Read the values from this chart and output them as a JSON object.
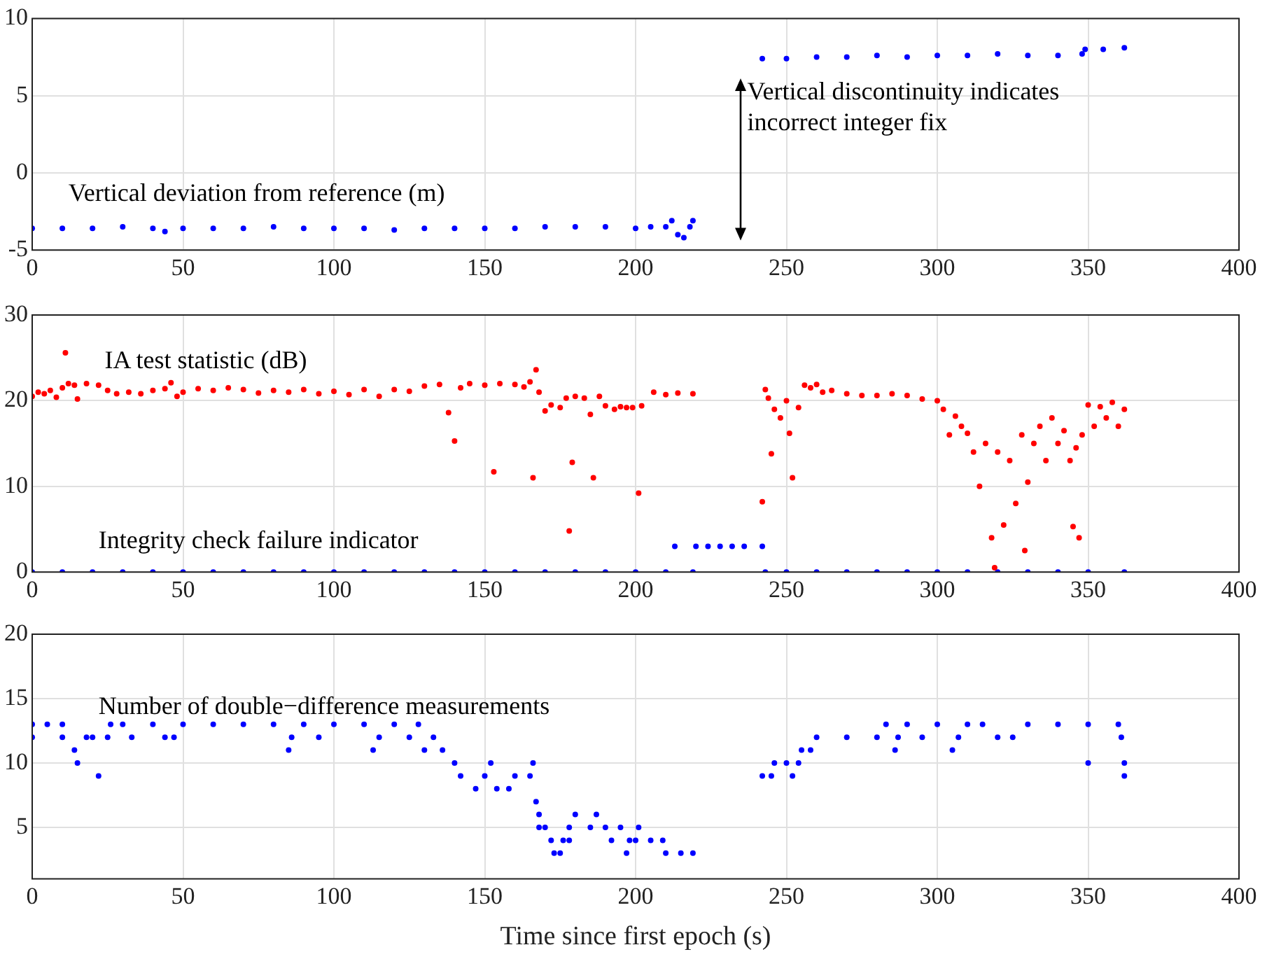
{
  "chart_data": [
    {
      "type": "scatter",
      "xlim": [
        0,
        400
      ],
      "xticks": [
        0,
        50,
        100,
        150,
        200,
        250,
        300,
        350,
        400
      ],
      "ylim": [
        -5,
        10
      ],
      "yticks": [
        -5,
        0,
        5,
        10
      ],
      "grid": true,
      "marker": "circle",
      "annotations": [
        "Vertical discontinuity indicates incorrect integer fix"
      ],
      "series": [
        {
          "name": "Vertical deviation from reference (m)",
          "color": "#0000ff",
          "x": [
            0,
            10,
            20,
            30,
            40,
            44,
            50,
            60,
            70,
            80,
            90,
            100,
            110,
            120,
            130,
            140,
            150,
            160,
            170,
            180,
            190,
            200,
            205,
            210,
            212,
            214,
            216,
            218,
            219,
            242,
            250,
            260,
            270,
            280,
            290,
            300,
            310,
            320,
            330,
            340,
            348,
            349,
            355,
            362
          ],
          "values": [
            -3.6,
            -3.6,
            -3.6,
            -3.5,
            -3.6,
            -3.8,
            -3.6,
            -3.6,
            -3.6,
            -3.5,
            -3.6,
            -3.6,
            -3.6,
            -3.7,
            -3.6,
            -3.6,
            -3.6,
            -3.6,
            -3.5,
            -3.5,
            -3.5,
            -3.6,
            -3.5,
            -3.5,
            -3.1,
            -4.0,
            -4.2,
            -3.5,
            -3.1,
            7.4,
            7.4,
            7.5,
            7.5,
            7.6,
            7.5,
            7.6,
            7.6,
            7.7,
            7.6,
            7.6,
            7.7,
            8.0,
            8.0,
            8.1
          ]
        }
      ]
    },
    {
      "type": "scatter",
      "xlim": [
        0,
        400
      ],
      "xticks": [
        0,
        50,
        100,
        150,
        200,
        250,
        300,
        350,
        400
      ],
      "ylim": [
        0,
        30
      ],
      "yticks": [
        0,
        10,
        20,
        30
      ],
      "grid": true,
      "legend": "top left",
      "marker": "circle",
      "series": [
        {
          "name": "IA test statistic (dB)",
          "color": "#ff0000",
          "x": [
            0,
            2,
            4,
            6,
            8,
            10,
            12,
            14,
            15,
            18,
            22,
            25,
            28,
            32,
            36,
            40,
            44,
            46,
            48,
            50,
            55,
            60,
            65,
            70,
            75,
            80,
            85,
            90,
            95,
            100,
            105,
            110,
            115,
            120,
            125,
            130,
            135,
            138,
            140,
            142,
            145,
            150,
            153,
            155,
            160,
            163,
            165,
            166,
            167,
            168,
            170,
            172,
            175,
            177,
            178,
            179,
            180,
            183,
            185,
            186,
            188,
            190,
            193,
            195,
            197,
            199,
            201,
            202,
            206,
            210,
            214,
            219,
            242,
            243,
            244,
            245,
            246,
            248,
            250,
            251,
            252,
            254,
            256,
            258,
            260,
            262,
            265,
            270,
            275,
            280,
            285,
            290,
            295,
            300,
            302,
            304,
            306,
            308,
            310,
            312,
            314,
            316,
            318,
            319,
            320,
            322,
            324,
            326,
            328,
            329,
            330,
            332,
            334,
            336,
            338,
            340,
            342,
            344,
            345,
            346,
            347,
            348,
            350,
            352,
            354,
            356,
            358,
            360,
            362
          ],
          "values": [
            20.5,
            21,
            20.8,
            21.2,
            20.4,
            21.5,
            22,
            21.8,
            20.2,
            22,
            21.8,
            21.2,
            20.8,
            21,
            20.8,
            21.2,
            21.4,
            22.1,
            20.5,
            21,
            21.4,
            21.2,
            21.5,
            21.3,
            20.9,
            21.2,
            21,
            21.3,
            20.8,
            21.1,
            20.7,
            21.3,
            20.5,
            21.3,
            21.1,
            21.7,
            21.9,
            18.6,
            15.3,
            21.5,
            22,
            21.8,
            11.7,
            22,
            21.9,
            21.6,
            22.2,
            11,
            23.6,
            21,
            18.8,
            19.5,
            19.2,
            20.3,
            4.8,
            12.8,
            20.5,
            20.3,
            18.4,
            11,
            20.5,
            19.4,
            19,
            19.3,
            19.2,
            19.2,
            9.2,
            19.4,
            21,
            20.7,
            20.9,
            20.8,
            8.2,
            21.3,
            20.3,
            13.8,
            19,
            18,
            20,
            16.2,
            11,
            19.2,
            21.8,
            21.5,
            21.9,
            21,
            21.2,
            20.8,
            20.6,
            20.6,
            20.8,
            20.6,
            20.2,
            20,
            19,
            16,
            18.2,
            17,
            16.2,
            14,
            10,
            15,
            4,
            0.5,
            14,
            5.5,
            13,
            8,
            16,
            2.5,
            10.5,
            15,
            17,
            13,
            18,
            15,
            16.5,
            13,
            5.3,
            14.5,
            4,
            16,
            19.5,
            17,
            19.3,
            18,
            19.8,
            17,
            19
          ]
        },
        {
          "name": "Integrity check failure indicator",
          "color": "#0000ff",
          "x": [
            0,
            10,
            20,
            30,
            40,
            50,
            60,
            70,
            80,
            90,
            100,
            110,
            120,
            130,
            140,
            150,
            160,
            170,
            180,
            190,
            200,
            210,
            219,
            213,
            220,
            224,
            228,
            232,
            236,
            242,
            243,
            250,
            260,
            270,
            280,
            290,
            300,
            310,
            320,
            330,
            340,
            350,
            362
          ],
          "values": [
            0,
            0,
            0,
            0,
            0,
            0,
            0,
            0,
            0,
            0,
            0,
            0,
            0,
            0,
            0,
            0,
            0,
            0,
            0,
            0,
            0,
            0,
            0,
            3,
            3,
            3,
            3,
            3,
            3,
            3,
            0,
            0,
            0,
            0,
            0,
            0,
            0,
            0,
            0,
            0,
            0,
            0,
            0
          ]
        }
      ]
    },
    {
      "type": "scatter",
      "xlabel": "Time since first epoch (s)",
      "xlim": [
        0,
        400
      ],
      "xticks": [
        0,
        50,
        100,
        150,
        200,
        250,
        300,
        350,
        400
      ],
      "ylim": [
        1,
        20
      ],
      "yticks": [
        5,
        10,
        15,
        20
      ],
      "grid": true,
      "marker": "circle",
      "series": [
        {
          "name": "Number of double−difference measurements",
          "color": "#0000ff",
          "x": [
            0,
            0,
            5,
            10,
            10,
            14,
            15,
            18,
            22,
            20,
            25,
            26,
            30,
            33,
            40,
            44,
            47,
            50,
            60,
            70,
            80,
            85,
            86,
            90,
            95,
            100,
            110,
            113,
            115,
            120,
            125,
            128,
            130,
            133,
            136,
            140,
            142,
            147,
            150,
            152,
            154,
            158,
            160,
            165,
            166,
            167,
            168,
            168,
            170,
            172,
            173,
            175,
            176,
            178,
            178,
            180,
            185,
            187,
            190,
            192,
            195,
            197,
            198,
            200,
            201,
            205,
            209,
            210,
            215,
            219,
            242,
            245,
            246,
            250,
            252,
            254,
            255,
            258,
            260,
            270,
            280,
            283,
            286,
            287,
            290,
            295,
            300,
            305,
            307,
            310,
            315,
            320,
            325,
            330,
            340,
            350,
            350,
            360,
            361,
            362,
            362
          ],
          "values": [
            13,
            12,
            13,
            13,
            12,
            11,
            10,
            12,
            9,
            12,
            12,
            13,
            13,
            12,
            13,
            12,
            12,
            13,
            13,
            13,
            13,
            11,
            12,
            13,
            12,
            13,
            13,
            11,
            12,
            13,
            12,
            13,
            11,
            12,
            11,
            10,
            9,
            8,
            9,
            10,
            8,
            8,
            9,
            9,
            10,
            7,
            6,
            5,
            5,
            4,
            3,
            3,
            4,
            4,
            5,
            6,
            5,
            6,
            5,
            4,
            5,
            3,
            4,
            4,
            5,
            4,
            4,
            3,
            3,
            3,
            9,
            9,
            10,
            10,
            9,
            10,
            11,
            11,
            12,
            12,
            12,
            13,
            11,
            12,
            13,
            12,
            13,
            11,
            12,
            13,
            13,
            12,
            12,
            13,
            13,
            10,
            13,
            13,
            12,
            10,
            9
          ]
        }
      ]
    }
  ]
}
